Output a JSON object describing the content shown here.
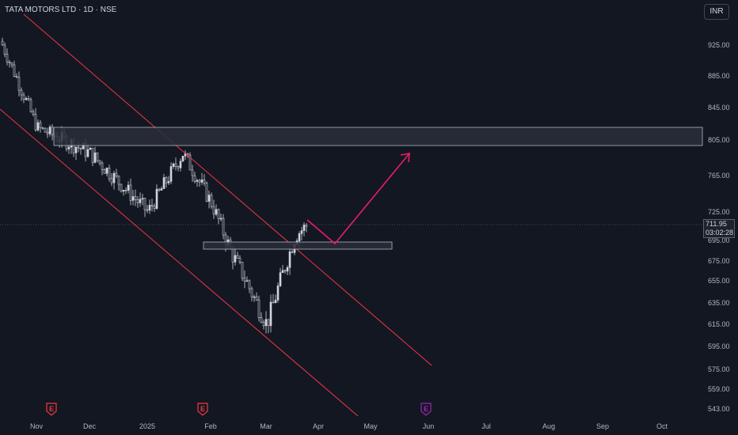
{
  "header": {
    "title": "TATA MOTORS LTD · 1D · NSE",
    "currency_button": "INR"
  },
  "price_tag": {
    "price": "711.95",
    "countdown": "03:02:28"
  },
  "colors": {
    "background": "#131722",
    "candle": "#d1d4dc",
    "channel": "#f23645",
    "arrow": "#e91e63",
    "zone_fill": "#2a2e39",
    "zone_border": "#b2b5be",
    "earnings_red": "#f23645",
    "earnings_purple": "#9c27b0"
  },
  "chart_data": {
    "type": "candlestick",
    "title": "TATA MOTORS LTD · 1D · NSE",
    "y_ticks": [
      "925.00",
      "885.00",
      "845.00",
      "805.00",
      "765.00",
      "725.00",
      "695.00",
      "675.00",
      "655.00",
      "635.00",
      "615.00",
      "595.00",
      "575.00",
      "559.00",
      "543.00"
    ],
    "x_ticks": [
      "Nov",
      "Dec",
      "2025",
      "Feb",
      "Mar",
      "Apr",
      "May",
      "Jun",
      "Jul",
      "Aug",
      "Sep",
      "Oct"
    ],
    "last_price": 711.95,
    "close_series_approx": [
      {
        "date": "Oct",
        "close": 930
      },
      {
        "date": "Nov",
        "close": 820
      },
      {
        "date": "Dec",
        "close": 790
      },
      {
        "date": "2025",
        "close": 725
      },
      {
        "date": "Jan-late",
        "close": 790
      },
      {
        "date": "Feb",
        "close": 735
      },
      {
        "date": "Feb-late",
        "close": 685
      },
      {
        "date": "Mar",
        "close": 615
      },
      {
        "date": "Mar-late",
        "close": 700
      },
      {
        "date": "Apr",
        "close": 712
      }
    ],
    "zones": [
      {
        "name": "resistance",
        "low": 800,
        "high": 818
      },
      {
        "name": "support",
        "low": 686,
        "high": 693
      }
    ],
    "events": [
      {
        "label": "E",
        "near": "Nov",
        "color": "red"
      },
      {
        "label": "E",
        "near": "Feb",
        "color": "red"
      },
      {
        "label": "E",
        "near": "Jun",
        "color": "purple"
      }
    ],
    "projection": {
      "from": 712,
      "pullback_to": 690,
      "target": 790
    }
  }
}
